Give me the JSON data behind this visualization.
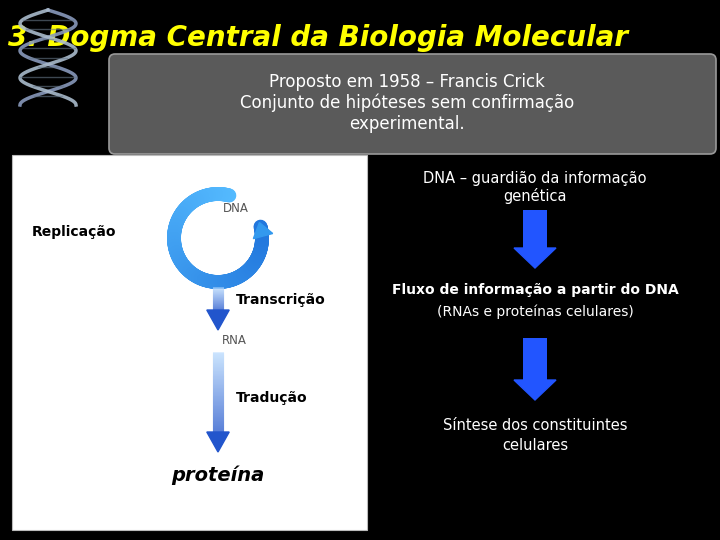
{
  "title": "3. Dogma Central da Biologia Molecular",
  "subtitle_line1": "Proposto em 1958 – Francis Crick",
  "subtitle_line2": "Conjunto de hipóteses sem confirmação",
  "subtitle_line3": "experimental.",
  "bg_color": "#000000",
  "title_color": "#ffff00",
  "subtitle_bg": "#666666",
  "subtitle_text_color": "#ffffff",
  "left_panel_bg": "#ffffff",
  "label_replicacao": "Replicação",
  "label_dna": "DNA",
  "label_transcricao": "Transcrição",
  "label_rna": "RNA",
  "label_traducao": "Tradução",
  "label_proteina": "proteína",
  "right_text1": "DNA – guardião da informação",
  "right_text2": "genética",
  "right_text3": "Fluxo de informação a partir do DNA",
  "right_text4": "(RNAs e proteínas celulares)",
  "right_text5": "Síntese dos constituintes",
  "right_text6": "celulares",
  "arrow_blue_bright": "#2255ff",
  "arrow_blue_light": "#88bbff",
  "circle_arc_color": "#55aadd",
  "circle_arc_light": "#aaddff"
}
